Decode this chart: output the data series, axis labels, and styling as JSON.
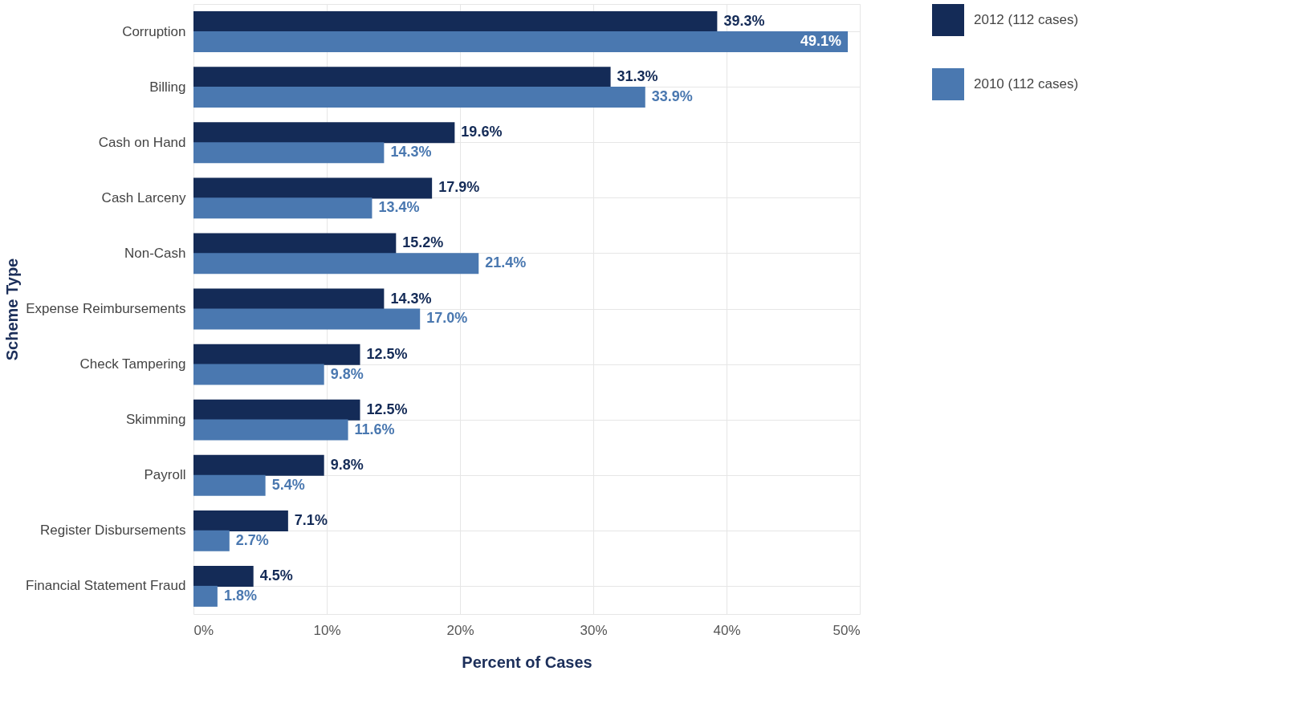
{
  "chart_data": {
    "type": "bar",
    "orientation": "horizontal",
    "xlabel": "Percent of Cases",
    "ylabel": "Scheme Type",
    "categories": [
      "Corruption",
      "Billing",
      "Cash on Hand",
      "Cash Larceny",
      "Non-Cash",
      "Expense Reimbursements",
      "Check Tampering",
      "Skimming",
      "Payroll",
      "Register Disbursements",
      "Financial Statement Fraud"
    ],
    "series": [
      {
        "name": "2012 (112 cases)",
        "color": "#142b57",
        "values": [
          39.3,
          31.3,
          19.6,
          17.9,
          15.2,
          14.3,
          12.5,
          12.5,
          9.8,
          7.1,
          4.5
        ],
        "value_labels": [
          "39.3%",
          "31.3%",
          "19.6%",
          "17.9%",
          "15.2%",
          "14.3%",
          "12.5%",
          "12.5%",
          "9.8%",
          "7.1%",
          "4.5%"
        ]
      },
      {
        "name": "2010 (112 cases)",
        "color": "#4a78b0",
        "values": [
          49.1,
          33.9,
          14.3,
          13.4,
          21.4,
          17.0,
          9.8,
          11.6,
          5.4,
          2.7,
          1.8
        ],
        "value_labels": [
          "49.1%",
          "33.9%",
          "14.3%",
          "13.4%",
          "21.4%",
          "17.0%",
          "9.8%",
          "11.6%",
          "5.4%",
          "2.7%",
          "1.8%"
        ]
      }
    ],
    "xlim": [
      0,
      50
    ],
    "xticks": [
      {
        "value": 0,
        "label": "0%"
      },
      {
        "value": 10,
        "label": "10%"
      },
      {
        "value": 20,
        "label": "20%"
      },
      {
        "value": 30,
        "label": "30%"
      },
      {
        "value": 40,
        "label": "40%"
      },
      {
        "value": 50,
        "label": "50%"
      }
    ],
    "grid": true,
    "legend": "top right"
  }
}
